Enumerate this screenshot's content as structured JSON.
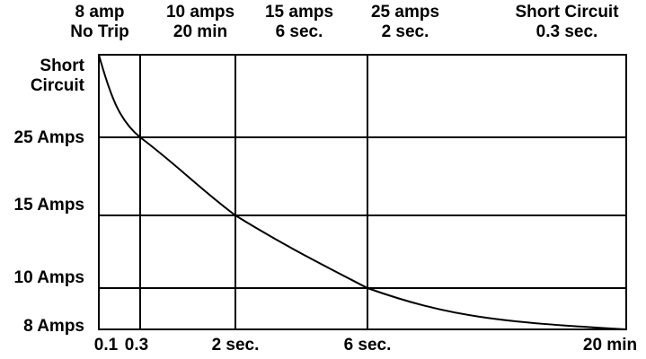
{
  "chart_data": {
    "type": "line",
    "title": "",
    "xlabel": "",
    "ylabel": "",
    "grid": true,
    "colors": {
      "line": "#000000",
      "grid": "#000000",
      "background": "#ffffff"
    },
    "top_labels": [
      {
        "lines": [
          "8 amp",
          "No Trip"
        ]
      },
      {
        "lines": [
          "10 amps",
          "20 min"
        ]
      },
      {
        "lines": [
          "15 amps",
          "6 sec."
        ]
      },
      {
        "lines": [
          "25 amps",
          "2 sec."
        ]
      },
      {
        "lines": [
          "Short Circuit",
          "0.3 sec."
        ]
      }
    ],
    "y_axis_labels": [
      {
        "lines": [
          "Short",
          "Circuit"
        ]
      },
      {
        "lines": [
          "25 Amps"
        ]
      },
      {
        "lines": [
          "15 Amps"
        ]
      },
      {
        "lines": [
          "10 Amps"
        ]
      },
      {
        "lines": [
          "8 Amps"
        ]
      }
    ],
    "x_tick_labels": [
      "0.1",
      "0.3",
      "2 sec.",
      "6 sec.",
      "20 min"
    ],
    "series": [
      {
        "points": [
          {
            "x": "0.1",
            "y": "Short Circuit"
          },
          {
            "x": "0.3",
            "y": "25 Amps"
          },
          {
            "x": "2 sec.",
            "y": "15 Amps"
          },
          {
            "x": "6 sec.",
            "y": "10 Amps"
          },
          {
            "x": "20 min",
            "y": "8 Amps"
          }
        ]
      }
    ]
  }
}
